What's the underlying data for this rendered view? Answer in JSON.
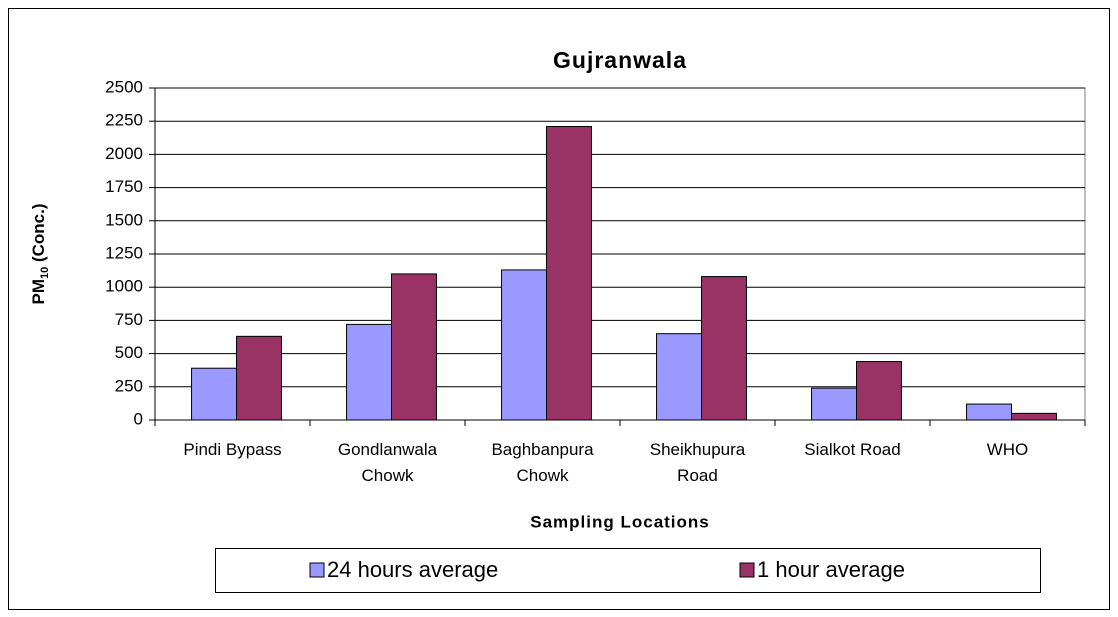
{
  "chart_data": {
    "type": "bar",
    "title": "Gujranwala",
    "categories": [
      [
        "Pindi Bypass"
      ],
      [
        "Gondlanwala",
        "Chowk"
      ],
      [
        "Baghbanpura",
        "Chowk"
      ],
      [
        "Sheikhupura",
        "Road"
      ],
      [
        "Sialkot Road"
      ],
      [
        "WHO"
      ]
    ],
    "series": [
      {
        "name": "24 hours average",
        "color": "#9999ff",
        "values": [
          390,
          720,
          1130,
          650,
          240,
          120
        ]
      },
      {
        "name": "1 hour average",
        "color": "#993366",
        "values": [
          630,
          1100,
          2210,
          1080,
          440,
          50
        ]
      }
    ],
    "x_label": "Sampling Locations",
    "y_label": [
      "PM",
      "10",
      " (Conc.)"
    ],
    "ylim": [
      0,
      2500
    ],
    "yticks": [
      0,
      250,
      500,
      750,
      1000,
      1250,
      1500,
      1750,
      2000,
      2250,
      2500
    ],
    "grid": true,
    "legend": "bottom"
  }
}
